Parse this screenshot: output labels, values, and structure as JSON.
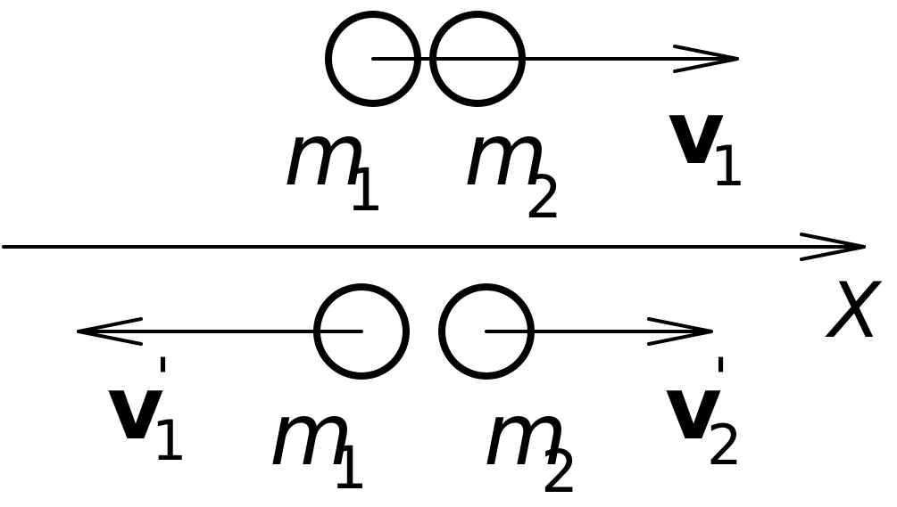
{
  "colors": {
    "ink": "#000000",
    "background": "#ffffff"
  },
  "before": {
    "mass1_symbol": "m",
    "mass1_index": "1",
    "mass2_symbol": "m",
    "mass2_index": "2",
    "velocity_symbol": "v",
    "velocity_index": "1"
  },
  "axis": {
    "label": "X"
  },
  "after": {
    "mass1_symbol": "m",
    "mass1_index": "1",
    "mass2_symbol": "m",
    "mass2_index": "2",
    "velocity1_symbol": "v",
    "velocity1_prime": "'",
    "velocity1_index": "1",
    "velocity2_symbol": "v",
    "velocity2_prime": "'",
    "velocity2_index": "2"
  }
}
